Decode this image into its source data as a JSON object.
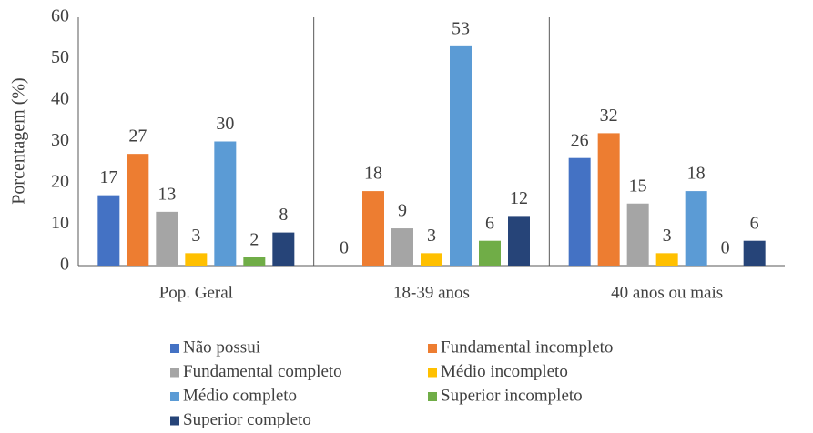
{
  "chart_data": {
    "type": "bar",
    "ylabel": "Porcentagem (%)",
    "categories": [
      "Pop. Geral",
      "18-39 anos",
      "40 anos ou mais"
    ],
    "series": [
      {
        "name": "Não possui",
        "color": "#4472c4",
        "values": [
          17,
          0,
          26
        ]
      },
      {
        "name": "Fundamental incompleto",
        "color": "#ed7d31",
        "values": [
          27,
          18,
          32
        ]
      },
      {
        "name": "Fundamental completo",
        "color": "#a5a5a5",
        "values": [
          13,
          9,
          15
        ]
      },
      {
        "name": "Médio incompleto",
        "color": "#ffc000",
        "values": [
          3,
          3,
          3
        ]
      },
      {
        "name": "Médio completo",
        "color": "#5b9bd5",
        "values": [
          30,
          53,
          18
        ]
      },
      {
        "name": "Superior incompleto",
        "color": "#70ad47",
        "values": [
          2,
          6,
          0
        ]
      },
      {
        "name": "Superior completo",
        "color": "#264478",
        "values": [
          8,
          12,
          6
        ]
      }
    ],
    "ylim": [
      0,
      60
    ],
    "yticks": [
      0,
      10,
      20,
      30,
      40,
      50,
      60
    ],
    "grid": false,
    "legend": "bottom"
  }
}
